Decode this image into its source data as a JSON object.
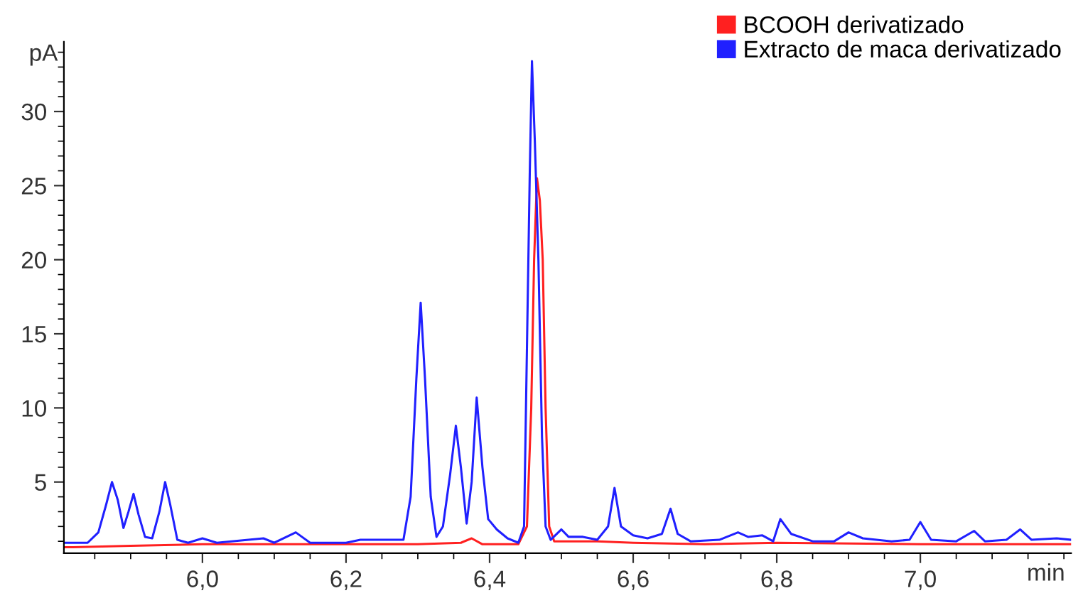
{
  "chart_data": {
    "type": "line",
    "xlabel": "min",
    "ylabel": "pA",
    "xlim": [
      5.807,
      7.21
    ],
    "xticks": [
      {
        "value": 6.0,
        "label": "6,0"
      },
      {
        "value": 6.2,
        "label": "6,2"
      },
      {
        "value": 6.4,
        "label": "6,4"
      },
      {
        "value": 6.6,
        "label": "6,6"
      },
      {
        "value": 6.8,
        "label": "6,8"
      },
      {
        "value": 7.0,
        "label": "7,0"
      }
    ],
    "ylim": [
      0.2,
      34.7
    ],
    "yticks": [
      5,
      10,
      15,
      20,
      25,
      30
    ],
    "grid": false,
    "legend": "top right",
    "marker": "none",
    "line_style": "solid",
    "series": [
      {
        "name": "BCOOH derivatizado",
        "color": "#ff2020",
        "x": [
          5.807,
          5.82,
          5.9,
          6.0,
          6.1,
          6.2,
          6.3,
          6.36,
          6.375,
          6.39,
          6.44,
          6.452,
          6.458,
          6.462,
          6.466,
          6.47,
          6.474,
          6.478,
          6.483,
          6.49,
          6.55,
          6.6,
          6.7,
          6.8,
          7.0,
          7.1,
          7.21
        ],
        "values": [
          0.6,
          0.6,
          0.7,
          0.8,
          0.8,
          0.8,
          0.8,
          0.9,
          1.2,
          0.8,
          0.8,
          2.0,
          10.0,
          20.0,
          25.5,
          24.0,
          20.0,
          10.0,
          2.0,
          1.0,
          1.0,
          0.9,
          0.8,
          0.9,
          0.8,
          0.8,
          0.8
        ]
      },
      {
        "name": "Extracto de maca derivatizado",
        "color": "#2020ff",
        "x": [
          5.807,
          5.84,
          5.855,
          5.866,
          5.874,
          5.882,
          5.89,
          5.897,
          5.904,
          5.911,
          5.92,
          5.93,
          5.94,
          5.948,
          5.955,
          5.965,
          5.98,
          6.0,
          6.02,
          6.085,
          6.1,
          6.13,
          6.15,
          6.2,
          6.22,
          6.28,
          6.29,
          6.298,
          6.304,
          6.31,
          6.318,
          6.326,
          6.335,
          6.345,
          6.353,
          6.36,
          6.368,
          6.375,
          6.382,
          6.39,
          6.398,
          6.41,
          6.425,
          6.44,
          6.448,
          6.452,
          6.456,
          6.459,
          6.463,
          6.468,
          6.473,
          6.478,
          6.485,
          6.5,
          6.51,
          6.53,
          6.55,
          6.565,
          6.574,
          6.583,
          6.6,
          6.62,
          6.64,
          6.652,
          6.662,
          6.68,
          6.72,
          6.746,
          6.76,
          6.78,
          6.795,
          6.805,
          6.82,
          6.85,
          6.88,
          6.9,
          6.92,
          6.96,
          6.985,
          7.0,
          7.015,
          7.05,
          7.075,
          7.09,
          7.12,
          7.139,
          7.155,
          7.19,
          7.21
        ],
        "values": [
          0.9,
          0.9,
          1.6,
          3.5,
          5.0,
          3.8,
          1.9,
          3.0,
          4.2,
          2.8,
          1.3,
          1.2,
          3.0,
          5.0,
          3.5,
          1.1,
          0.9,
          1.2,
          0.9,
          1.2,
          0.9,
          1.6,
          0.9,
          0.9,
          1.1,
          1.1,
          4.0,
          12.0,
          17.1,
          12.0,
          4.0,
          1.3,
          2.0,
          5.5,
          8.8,
          6.0,
          2.2,
          5.0,
          10.7,
          6.0,
          2.5,
          1.8,
          1.2,
          0.9,
          2.0,
          14.0,
          26.0,
          33.4,
          28.0,
          20.0,
          8.0,
          2.0,
          1.1,
          1.8,
          1.3,
          1.3,
          1.1,
          2.0,
          4.6,
          2.0,
          1.4,
          1.2,
          1.5,
          3.2,
          1.5,
          1.0,
          1.1,
          1.6,
          1.3,
          1.4,
          1.0,
          2.5,
          1.5,
          1.0,
          1.0,
          1.6,
          1.2,
          1.0,
          1.1,
          2.3,
          1.1,
          1.0,
          1.7,
          1.0,
          1.1,
          1.8,
          1.1,
          1.2,
          1.1
        ]
      }
    ]
  }
}
